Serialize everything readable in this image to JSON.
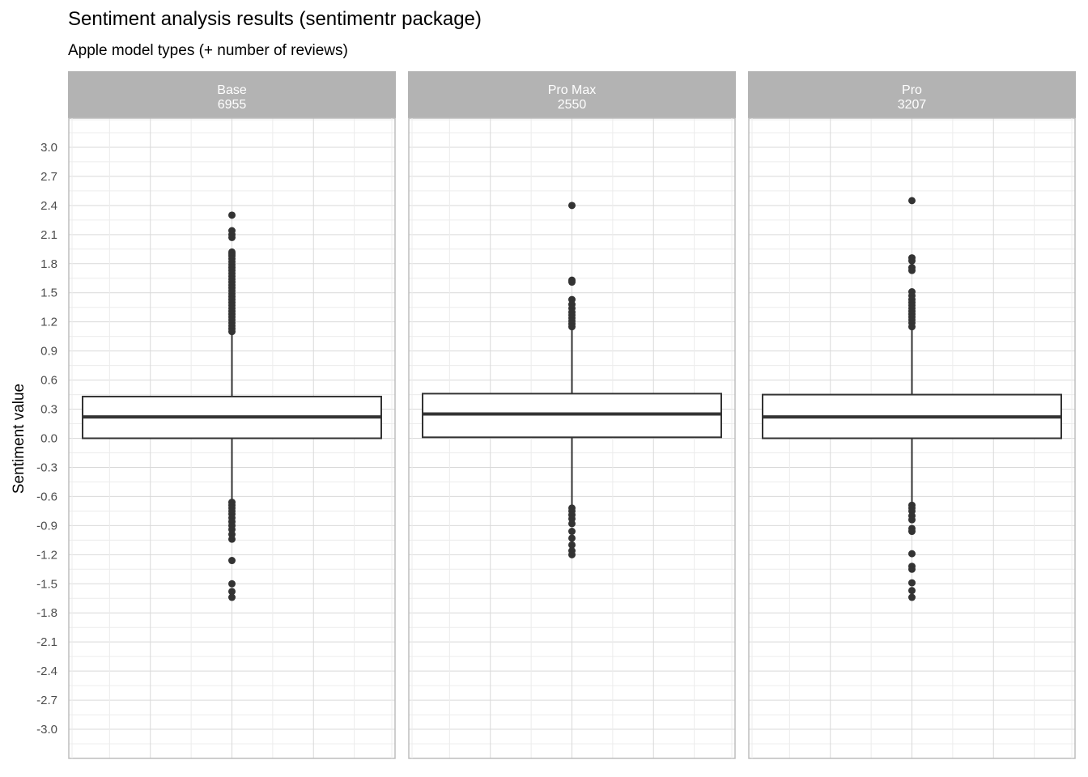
{
  "chart_data": {
    "type": "boxplot",
    "title": "Sentiment analysis results (sentimentr package)",
    "subtitle": "Apple model types (+ number of reviews)",
    "xlabel": "",
    "ylabel": "Sentiment value",
    "ylim": [
      -3.3,
      3.3
    ],
    "yticks": [
      "3.0",
      "2.7",
      "2.4",
      "2.1",
      "1.8",
      "1.5",
      "1.2",
      "0.9",
      "0.6",
      "0.3",
      "0.0",
      "-0.3",
      "-0.6",
      "-0.9",
      "-1.2",
      "-1.5",
      "-1.8",
      "-2.1",
      "-2.4",
      "-2.7",
      "-3.0"
    ],
    "grid": true,
    "colors": {
      "strip_fill": "#b3b3b3",
      "strip_text": "#ffffff",
      "grid_major": "#d9d9d9",
      "grid_minor": "#ececec",
      "box_line": "#333333",
      "outlier": "#333333"
    },
    "facets": [
      {
        "name": "Base",
        "count": "6955",
        "q1": 0.0,
        "median": 0.22,
        "q3": 0.43,
        "whisker_low": -0.64,
        "whisker_high": 1.07,
        "outliers": [
          2.3,
          2.14,
          2.1,
          2.07,
          1.92,
          1.9,
          1.88,
          1.85,
          1.82,
          1.79,
          1.76,
          1.73,
          1.7,
          1.67,
          1.64,
          1.61,
          1.58,
          1.55,
          1.52,
          1.49,
          1.46,
          1.43,
          1.4,
          1.37,
          1.34,
          1.31,
          1.28,
          1.25,
          1.22,
          1.19,
          1.16,
          1.13,
          1.1,
          -0.66,
          -0.69,
          -0.72,
          -0.75,
          -0.78,
          -0.82,
          -0.86,
          -0.9,
          -0.94,
          -0.99,
          -1.04,
          -1.26,
          -1.5,
          -1.58,
          -1.64
        ]
      },
      {
        "name": "Pro Max",
        "count": "2550",
        "q1": 0.01,
        "median": 0.25,
        "q3": 0.46,
        "whisker_low": -0.7,
        "whisker_high": 1.12,
        "outliers": [
          2.4,
          1.63,
          1.61,
          1.43,
          1.38,
          1.34,
          1.3,
          1.27,
          1.24,
          1.21,
          1.18,
          1.15,
          -0.72,
          -0.75,
          -0.79,
          -0.83,
          -0.88,
          -0.96,
          -1.03,
          -1.1,
          -1.16,
          -1.2
        ]
      },
      {
        "name": "Pro",
        "count": "3207",
        "q1": 0.0,
        "median": 0.22,
        "q3": 0.45,
        "whisker_low": -0.67,
        "whisker_high": 1.12,
        "outliers": [
          2.45,
          1.86,
          1.83,
          1.76,
          1.73,
          1.51,
          1.47,
          1.43,
          1.4,
          1.37,
          1.34,
          1.31,
          1.28,
          1.25,
          1.22,
          1.19,
          1.15,
          -0.69,
          -0.72,
          -0.75,
          -0.8,
          -0.84,
          -0.93,
          -0.96,
          -1.19,
          -1.32,
          -1.35,
          -1.49,
          -1.57,
          -1.64
        ]
      }
    ]
  }
}
